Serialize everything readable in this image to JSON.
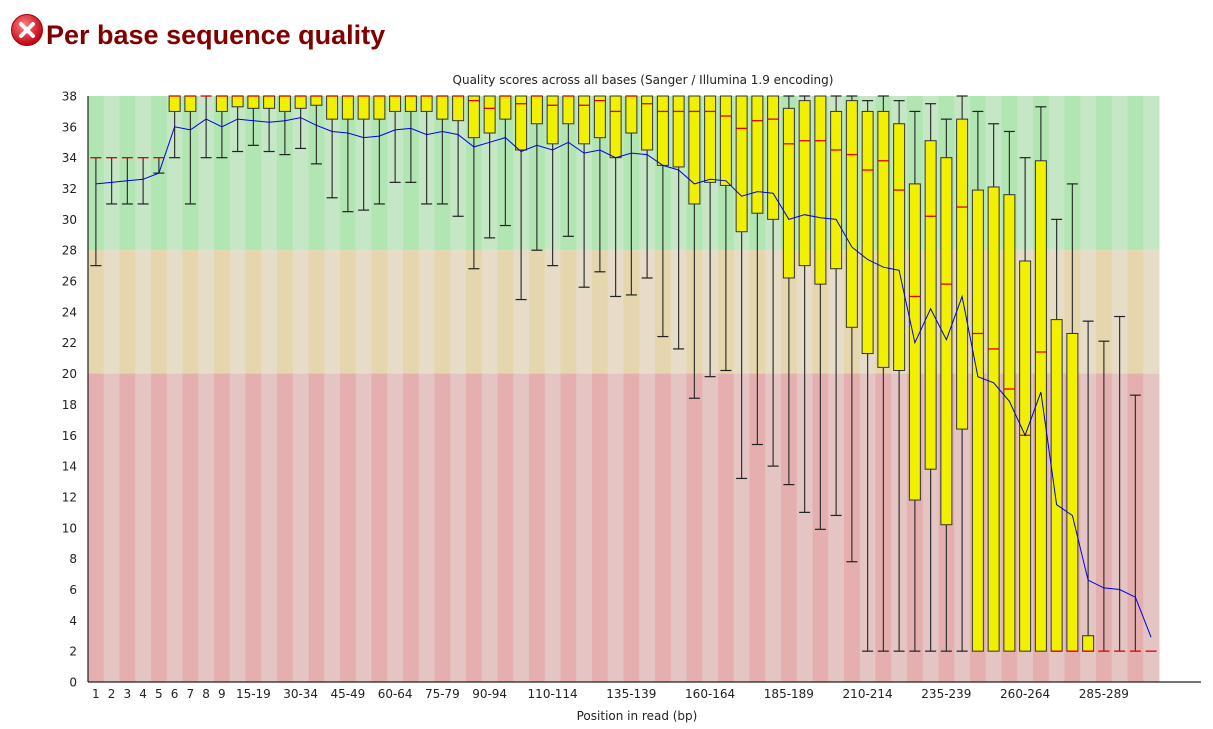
{
  "header": {
    "title": "Per base sequence quality",
    "status_icon": "fail-x-icon",
    "status_color": "#e0303a"
  },
  "chart_data": {
    "type": "boxplot",
    "title": "Quality scores across all bases (Sanger / Illumina 1.9 encoding)",
    "xlabel": "Position in read (bp)",
    "ylabel": "",
    "ylim": [
      0,
      38
    ],
    "yticks": [
      0,
      2,
      4,
      6,
      8,
      10,
      12,
      14,
      16,
      18,
      20,
      22,
      24,
      26,
      28,
      30,
      32,
      34,
      36,
      38
    ],
    "grid": false,
    "legend": "none",
    "zones": [
      {
        "from": 28,
        "to": 38,
        "colors": [
          "#b1e5b1",
          "#c5e7c5"
        ]
      },
      {
        "from": 20,
        "to": 28,
        "colors": [
          "#e6d6ae",
          "#e6dcc7"
        ]
      },
      {
        "from": 0,
        "to": 20,
        "colors": [
          "#e5afaf",
          "#e5c4c4"
        ]
      }
    ],
    "colors": {
      "box": "#f0f000",
      "median": "#e00000",
      "mean": "#0000e0",
      "whisker": "#000000"
    },
    "categories": [
      "1",
      "2",
      "3",
      "4",
      "5",
      "6",
      "7",
      "8",
      "9",
      "10-14",
      "15-19",
      "20-24",
      "25-29",
      "30-34",
      "35-39",
      "40-44",
      "45-49",
      "50-54",
      "55-59",
      "60-64",
      "65-69",
      "70-74",
      "75-79",
      "80-84",
      "85-89",
      "90-94",
      "95-99",
      "100-104",
      "105-109",
      "110-114",
      "115-119",
      "120-124",
      "125-129",
      "130-134",
      "135-139",
      "140-144",
      "145-149",
      "150-154",
      "155-159",
      "160-164",
      "165-169",
      "170-174",
      "175-179",
      "180-184",
      "185-189",
      "190-194",
      "195-199",
      "200-204",
      "205-209",
      "210-214",
      "215-219",
      "220-224",
      "225-229",
      "230-234",
      "235-239",
      "240-244",
      "245-249",
      "250-254",
      "255-259",
      "260-264",
      "265-269",
      "270-274",
      "275-279",
      "280-284",
      "285-289",
      "290-294",
      "295-299",
      "300-301"
    ],
    "tick_labels": [
      "1",
      "2",
      "3",
      "4",
      "5",
      "6",
      "7",
      "8",
      "9",
      "15-19",
      "30-34",
      "45-49",
      "60-64",
      "75-79",
      "90-94",
      "110-114",
      "135-139",
      "160-164",
      "185-189",
      "210-214",
      "235-239",
      "260-264",
      "285-289"
    ],
    "lower_whisker": [
      27,
      31,
      31,
      31,
      33,
      34,
      31,
      34,
      34,
      34.4,
      34.8,
      34.4,
      34.2,
      34.6,
      33.6,
      31.4,
      30.5,
      30.6,
      31,
      32.4,
      32.4,
      31,
      31,
      30.2,
      26.8,
      28.8,
      29.6,
      24.8,
      28,
      27,
      28.9,
      25.6,
      26.6,
      25,
      25.1,
      26.2,
      22.4,
      21.6,
      18.4,
      19.8,
      20.2,
      13.2,
      15.4,
      14,
      12.8,
      11,
      9.9,
      10.8,
      7.8,
      2,
      2,
      2,
      2,
      2,
      2,
      2,
      2,
      2,
      2,
      2,
      2,
      2,
      2,
      2,
      2,
      2,
      2,
      2
    ],
    "q1": [
      34,
      34,
      34,
      34,
      34,
      37,
      37,
      38,
      37,
      37.3,
      37.2,
      37.2,
      37,
      37.2,
      37.4,
      36.5,
      36.5,
      36.5,
      36.5,
      37,
      37,
      37,
      36.5,
      36.4,
      35.3,
      35.6,
      36.5,
      34.5,
      36.2,
      34.9,
      36.2,
      34.9,
      35.3,
      34,
      35.6,
      34.5,
      33.5,
      33.4,
      31,
      32.4,
      32.2,
      29.2,
      30.4,
      30,
      26.2,
      27,
      25.8,
      26.8,
      23,
      21.3,
      20.4,
      20.2,
      11.8,
      13.8,
      10.2,
      16.4,
      2,
      2,
      2,
      2,
      2,
      2,
      2,
      2,
      2,
      2,
      2,
      2
    ],
    "median": [
      34,
      34,
      34,
      34,
      34,
      38,
      38,
      38,
      38,
      38,
      38,
      38,
      38,
      38,
      38,
      38,
      38,
      38,
      38,
      38,
      38,
      38,
      38,
      38,
      37.7,
      37.2,
      38,
      37.5,
      38,
      37.4,
      38,
      37.4,
      37.7,
      37,
      38,
      37.5,
      37,
      37,
      37,
      37,
      36.7,
      35.9,
      36.4,
      36.5,
      34.9,
      35.1,
      35.1,
      34.5,
      34.2,
      33.2,
      33.8,
      31.9,
      25,
      30.2,
      25.8,
      30.8,
      22.6,
      21.6,
      19,
      16,
      21.4,
      2,
      2,
      2,
      2,
      2,
      2,
      2
    ],
    "q3": [
      34,
      34,
      34,
      34,
      34,
      38,
      38,
      38,
      38,
      38,
      38,
      38,
      38,
      38,
      38,
      38,
      38,
      38,
      38,
      38,
      38,
      38,
      38,
      38,
      38,
      38,
      38,
      38,
      38,
      38,
      38,
      38,
      38,
      38,
      38,
      38,
      38,
      38,
      38,
      38,
      38,
      38,
      38,
      38,
      37.2,
      37.7,
      38,
      37,
      37.7,
      37,
      37,
      36.2,
      32.3,
      35.1,
      34,
      36.5,
      31.9,
      32.1,
      31.6,
      27.3,
      33.8,
      23.5,
      22.6,
      3,
      2,
      2,
      2,
      2
    ],
    "upper_whisker": [
      34,
      34,
      34,
      34,
      34,
      38,
      38,
      38,
      38,
      38,
      38,
      38,
      38,
      38,
      38,
      38,
      38,
      38,
      38,
      38,
      38,
      38,
      38,
      38,
      38,
      38,
      38,
      38,
      38,
      38,
      38,
      38,
      38,
      38,
      38,
      38,
      38,
      38,
      38,
      38,
      38,
      38,
      38,
      38,
      38,
      38,
      38,
      38,
      38,
      37.7,
      38,
      37.7,
      37,
      37.5,
      36.5,
      38,
      37,
      36.2,
      35.7,
      34,
      37.3,
      30,
      32.3,
      23.4,
      22.1,
      23.7,
      18.6,
      2
    ],
    "mean": [
      32.3,
      32.4,
      32.5,
      32.6,
      33,
      36,
      35.8,
      36.5,
      36,
      36.5,
      36.4,
      36.3,
      36.4,
      36.6,
      36.1,
      35.7,
      35.6,
      35.3,
      35.4,
      35.8,
      35.9,
      35.5,
      35.7,
      35.5,
      34.7,
      35,
      35.3,
      34.4,
      34.8,
      34.5,
      35,
      34.3,
      34.5,
      34,
      34.3,
      34.2,
      33.5,
      33.2,
      32.3,
      32.6,
      32.5,
      31.5,
      31.8,
      31.7,
      30,
      30.3,
      30.1,
      30,
      28.2,
      27.4,
      26.9,
      26.7,
      22,
      24.2,
      22.2,
      25,
      19.8,
      19.4,
      18.2,
      16,
      18.8,
      11.5,
      10.8,
      6.6,
      6.1,
      6,
      5.5,
      2.9
    ]
  }
}
